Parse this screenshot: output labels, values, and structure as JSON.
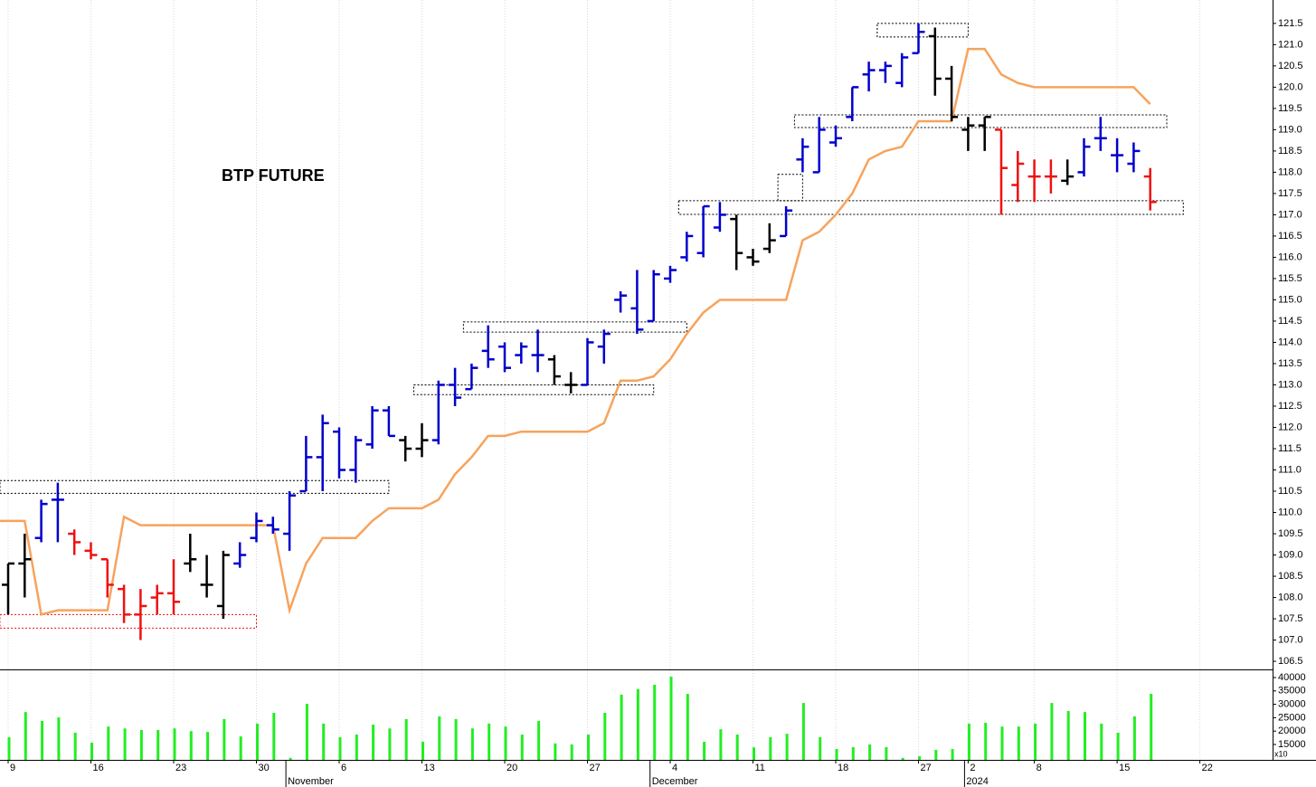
{
  "chart_data": {
    "type": "ohlc",
    "title": "BTP FUTURE",
    "categories": [
      "9",
      null,
      null,
      null,
      null,
      "16",
      null,
      null,
      null,
      null,
      "23",
      null,
      null,
      null,
      null,
      "30",
      null,
      null,
      null,
      null,
      "6",
      null,
      null,
      null,
      null,
      "13",
      null,
      null,
      null,
      null,
      "20",
      null,
      null,
      null,
      null,
      "27",
      null,
      null,
      null,
      null,
      "4",
      null,
      null,
      null,
      null,
      "11",
      null,
      null,
      null,
      null,
      "18",
      null,
      null,
      null,
      null,
      "27",
      null,
      null,
      "2",
      null,
      null,
      null,
      "8",
      null,
      null,
      null,
      null,
      "15",
      null,
      null,
      null,
      null,
      "22"
    ],
    "month_labels": [
      {
        "label": "November",
        "index": 17
      },
      {
        "label": "December",
        "index": 39
      },
      {
        "label": "2024",
        "index": 58
      }
    ],
    "open": [
      108.3,
      108.8,
      109.4,
      110.3,
      109.5,
      109.1,
      108.9,
      108.2,
      107.6,
      108.0,
      108.1,
      108.8,
      108.3,
      107.8,
      108.8,
      109.4,
      109.7,
      109.5,
      110.5,
      111.3,
      111.9,
      111.0,
      111.6,
      112.4,
      111.7,
      111.5,
      111.7,
      113.0,
      112.9,
      113.8,
      113.9,
      113.7,
      113.7,
      113.6,
      113.0,
      113.0,
      113.9,
      115.0,
      114.8,
      114.5,
      115.5,
      116.0,
      116.1,
      116.7,
      116.9,
      116.0,
      116.2,
      116.5,
      118.3,
      118.0,
      118.7,
      119.3,
      120.3,
      120.4,
      120.1,
      120.8,
      121.2,
      120.2,
      119.0,
      119.1,
      119.0,
      117.7,
      117.9,
      117.9,
      117.8,
      118.0,
      118.8,
      118.4,
      118.2,
      117.9,
      null,
      null,
      null
    ],
    "high": [
      108.8,
      109.5,
      110.3,
      110.7,
      109.6,
      109.3,
      108.9,
      108.3,
      108.2,
      108.3,
      108.9,
      109.5,
      109.0,
      109.1,
      109.3,
      110.0,
      109.9,
      110.5,
      111.8,
      112.3,
      112.0,
      111.8,
      112.5,
      112.5,
      111.8,
      112.1,
      113.1,
      113.4,
      113.5,
      114.4,
      114.0,
      114.0,
      114.3,
      113.7,
      113.3,
      114.1,
      114.3,
      115.2,
      115.7,
      115.7,
      115.8,
      116.6,
      117.2,
      117.3,
      117.0,
      116.2,
      116.8,
      117.2,
      118.8,
      119.3,
      119.1,
      120.0,
      120.6,
      120.6,
      120.8,
      121.5,
      121.4,
      120.5,
      119.3,
      119.3,
      119.0,
      118.5,
      118.3,
      118.3,
      118.3,
      118.8,
      119.3,
      118.8,
      118.7,
      118.1,
      null,
      null,
      null
    ],
    "low": [
      107.6,
      108.0,
      109.3,
      109.3,
      109.0,
      108.9,
      108.0,
      107.4,
      107.0,
      107.6,
      107.6,
      108.6,
      108.0,
      107.5,
      108.7,
      109.3,
      109.5,
      109.1,
      110.5,
      110.5,
      110.8,
      110.7,
      111.5,
      111.8,
      111.2,
      111.3,
      111.6,
      112.5,
      112.9,
      113.4,
      113.3,
      113.5,
      113.3,
      113.0,
      112.8,
      113.0,
      113.5,
      114.7,
      114.2,
      114.5,
      115.4,
      115.9,
      116.0,
      116.6,
      115.7,
      115.8,
      116.1,
      116.5,
      118.0,
      118.0,
      118.6,
      119.2,
      119.9,
      120.1,
      120.0,
      120.8,
      119.8,
      119.2,
      118.5,
      118.5,
      117.0,
      117.3,
      117.3,
      117.5,
      117.7,
      117.9,
      118.5,
      118.0,
      118.0,
      117.1,
      null,
      null,
      null
    ],
    "close": [
      108.8,
      108.9,
      110.2,
      110.3,
      109.3,
      109.0,
      108.3,
      107.6,
      107.8,
      108.1,
      107.9,
      108.9,
      108.3,
      109.0,
      109.0,
      109.8,
      109.6,
      110.4,
      111.3,
      112.1,
      111.0,
      111.7,
      112.4,
      111.8,
      111.5,
      111.7,
      113.0,
      112.7,
      113.4,
      113.6,
      113.4,
      113.9,
      113.7,
      113.2,
      113.0,
      114.0,
      114.2,
      115.1,
      114.3,
      115.6,
      115.7,
      116.5,
      117.2,
      117.0,
      116.1,
      115.9,
      116.4,
      117.1,
      118.6,
      119.0,
      118.8,
      120.0,
      120.4,
      120.5,
      120.7,
      121.3,
      120.2,
      119.3,
      119.1,
      119.3,
      118.1,
      118.2,
      117.9,
      117.9,
      117.9,
      118.6,
      118.8,
      118.4,
      118.5,
      117.3,
      null,
      null,
      null
    ],
    "colors": [
      "#000000",
      "#000000",
      "#0000cc",
      "#0000cc",
      "#ee1111",
      "#ee1111",
      "#ee1111",
      "#ee1111",
      "#ee1111",
      "#ee1111",
      "#ee1111",
      "#000000",
      "#000000",
      "#000000",
      "#0000cc",
      "#0000cc",
      "#0000cc",
      "#0000cc",
      "#0000cc",
      "#0000cc",
      "#0000cc",
      "#0000cc",
      "#0000cc",
      "#0000cc",
      "#000000",
      "#000000",
      "#0000cc",
      "#0000cc",
      "#0000cc",
      "#0000cc",
      "#0000cc",
      "#0000cc",
      "#0000cc",
      "#000000",
      "#000000",
      "#0000cc",
      "#0000cc",
      "#0000cc",
      "#0000cc",
      "#0000cc",
      "#0000cc",
      "#0000cc",
      "#0000cc",
      "#0000cc",
      "#000000",
      "#000000",
      "#000000",
      "#0000cc",
      "#0000cc",
      "#0000cc",
      "#0000cc",
      "#0000cc",
      "#0000cc",
      "#0000cc",
      "#0000cc",
      "#0000cc",
      "#000000",
      "#000000",
      "#000000",
      "#000000",
      "#ee1111",
      "#ee1111",
      "#ee1111",
      "#ee1111",
      "#000000",
      "#0000cc",
      "#0000cc",
      "#0000cc",
      "#0000cc",
      "#ee1111",
      null,
      null,
      null
    ],
    "overlay": {
      "color": "#f7a35c",
      "values": [
        109.8,
        109.8,
        107.6,
        107.7,
        107.7,
        107.7,
        107.7,
        109.9,
        109.7,
        109.7,
        109.7,
        109.7,
        109.7,
        109.7,
        109.7,
        109.7,
        109.7,
        107.7,
        108.8,
        109.4,
        109.4,
        109.4,
        109.8,
        110.1,
        110.1,
        110.1,
        110.3,
        110.9,
        111.3,
        111.8,
        111.8,
        111.9,
        111.9,
        111.9,
        111.9,
        111.9,
        112.1,
        113.1,
        113.1,
        113.2,
        113.6,
        114.2,
        114.7,
        115.0,
        115.0,
        115.0,
        115.0,
        115.0,
        116.4,
        116.6,
        117.0,
        117.5,
        118.3,
        118.5,
        118.6,
        119.2,
        119.2,
        119.2,
        120.9,
        120.9,
        120.3,
        120.1,
        120.0,
        120.0,
        120.0,
        120.0,
        120.0,
        120.0,
        120.0,
        119.6,
        null,
        null,
        null
      ]
    },
    "zones": [
      {
        "start": 0,
        "end": 23,
        "low": 110.45,
        "high": 110.75,
        "color": "#000000"
      },
      {
        "start": 0,
        "end": 15,
        "low": 107.28,
        "high": 107.6,
        "color": "#ee1111"
      },
      {
        "start": 25,
        "end": 39,
        "low": 112.77,
        "high": 113.0,
        "color": "#000000"
      },
      {
        "start": 28,
        "end": 41,
        "low": 114.24,
        "high": 114.48,
        "color": "#000000"
      },
      {
        "start": 41,
        "end": 71,
        "low": 117.01,
        "high": 117.33,
        "color": "#000000"
      },
      {
        "start": 47,
        "end": 48,
        "low": 117.33,
        "high": 117.95,
        "color": "#000000"
      },
      {
        "start": 48,
        "end": 70,
        "low": 119.05,
        "high": 119.35,
        "color": "#000000"
      },
      {
        "start": 53,
        "end": 58,
        "low": 121.18,
        "high": 121.5,
        "color": "#000000"
      }
    ],
    "ylim": [
      106.31,
      122.05
    ],
    "yticks": [
      {
        "value": 106.5,
        "label": "106.5"
      },
      {
        "value": 107,
        "label": "107.0"
      },
      107.5,
      {
        "value": 108,
        "label": "108.0"
      },
      108.5,
      {
        "value": 109,
        "label": "109.0"
      },
      109.5,
      {
        "value": 110,
        "label": "110.0"
      },
      110.5,
      {
        "value": 111,
        "label": "111.0"
      },
      111.5,
      {
        "value": 112,
        "label": "112.0"
      },
      112.5,
      {
        "value": 113,
        "label": "113.0"
      },
      113.5,
      {
        "value": 114,
        "label": "114.0"
      },
      114.5,
      {
        "value": 115,
        "label": "115.0"
      },
      115.5,
      {
        "value": 116,
        "label": "116.0"
      },
      116.5,
      {
        "value": 117,
        "label": "117.0"
      },
      117.5,
      {
        "value": 118,
        "label": "118.0"
      },
      118.5,
      {
        "value": 119,
        "label": "119.0"
      },
      119.5,
      {
        "value": 120,
        "label": "120.0"
      },
      120.5,
      {
        "value": 121,
        "label": "121.0"
      },
      121.5
    ],
    "volume": {
      "type": "bar",
      "color": "#22ee22",
      "unit_label": "x10",
      "values": [
        17700,
        27100,
        23800,
        25100,
        19400,
        15700,
        21700,
        21000,
        20400,
        20400,
        21000,
        20000,
        19700,
        24500,
        18000,
        22800,
        26800,
        10000,
        30200,
        22800,
        17700,
        18700,
        22400,
        21000,
        24500,
        16000,
        25500,
        24500,
        21000,
        22800,
        21700,
        18700,
        23800,
        15400,
        15000,
        18700,
        26800,
        33600,
        35700,
        37300,
        40300,
        33900,
        16000,
        20700,
        18700,
        13900,
        17700,
        19000,
        30500,
        17700,
        13300,
        14000,
        15000,
        14000,
        10000,
        10600,
        13000,
        13300,
        22800,
        23100,
        21700,
        21700,
        22800,
        30500,
        27500,
        27100,
        22800,
        19400,
        25500,
        33900,
        null,
        null,
        null
      ],
      "ylim": [
        9257,
        42700
      ],
      "yticks": [
        15000,
        20000,
        25000,
        30000,
        35000,
        40000
      ]
    }
  }
}
